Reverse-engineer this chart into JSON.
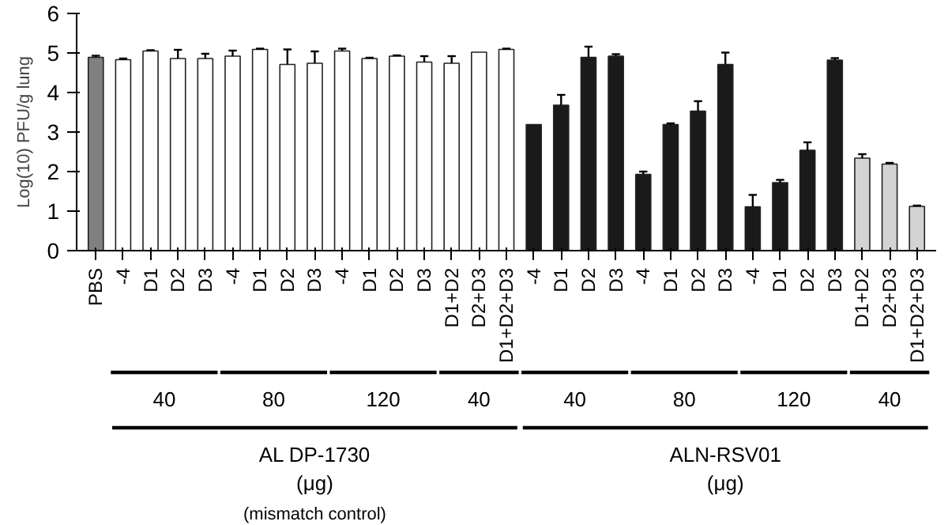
{
  "chart_data": {
    "type": "bar",
    "ylabel": "Log(10) PFU/g lung",
    "categories": [
      "PBS",
      "-4",
      "D1",
      "D2",
      "D3",
      "-4",
      "D1",
      "D2",
      "D3",
      "-4",
      "D1",
      "D2",
      "D3",
      "D1+D2",
      "D2+D3",
      "D1+D2+D3",
      "-4",
      "D1",
      "D2",
      "D3",
      "-4",
      "D1",
      "D2",
      "D3",
      "-4",
      "D1",
      "D2",
      "D3",
      "D1+D2",
      "D2+D3",
      "D1+D2+D3"
    ],
    "values": [
      4.89,
      4.83,
      5.05,
      4.86,
      4.86,
      4.92,
      5.09,
      4.71,
      4.74,
      5.05,
      4.86,
      4.92,
      4.77,
      4.74,
      5.02,
      5.09,
      3.19,
      3.68,
      4.89,
      4.92,
      1.93,
      3.19,
      3.53,
      4.71,
      1.11,
      1.72,
      2.54,
      4.82,
      2.34,
      2.19,
      1.12
    ],
    "colors": [
      "#808080",
      "#ffffff",
      "#ffffff",
      "#ffffff",
      "#ffffff",
      "#ffffff",
      "#ffffff",
      "#ffffff",
      "#ffffff",
      "#ffffff",
      "#ffffff",
      "#ffffff",
      "#ffffff",
      "#ffffff",
      "#ffffff",
      "#ffffff",
      "#1a1a1a",
      "#1a1a1a",
      "#1a1a1a",
      "#1a1a1a",
      "#1a1a1a",
      "#1a1a1a",
      "#1a1a1a",
      "#1a1a1a",
      "#1a1a1a",
      "#1a1a1a",
      "#1a1a1a",
      "#1a1a1a",
      "#d3d3d3",
      "#d3d3d3",
      "#d3d3d3"
    ],
    "errors": [
      [
        4.89,
        4.93
      ],
      [
        4.83,
        4.86
      ],
      [
        5.05,
        5.07
      ],
      [
        4.86,
        5.08
      ],
      [
        4.86,
        4.98
      ],
      [
        4.92,
        5.06
      ],
      [
        5.09,
        5.11
      ],
      [
        4.71,
        5.09
      ],
      [
        4.74,
        5.04
      ],
      [
        5.05,
        5.11
      ],
      [
        4.86,
        4.88
      ],
      [
        4.92,
        4.94
      ],
      [
        4.77,
        4.92
      ],
      [
        4.74,
        4.92
      ],
      null,
      [
        5.09,
        5.11
      ],
      null,
      [
        3.68,
        3.94
      ],
      [
        4.89,
        5.16
      ],
      [
        4.92,
        4.97
      ],
      [
        1.93,
        2.0
      ],
      [
        3.19,
        3.22
      ],
      [
        3.53,
        3.78
      ],
      [
        4.71,
        5.01
      ],
      [
        1.11,
        1.41
      ],
      [
        1.72,
        1.79
      ],
      [
        2.54,
        2.74
      ],
      [
        4.82,
        4.87
      ],
      [
        2.34,
        2.44
      ],
      [
        2.19,
        2.22
      ],
      [
        1.12,
        1.14
      ]
    ],
    "ylim": [
      0,
      6
    ],
    "yticks": [
      0,
      1,
      2,
      3,
      4,
      5,
      6
    ],
    "annotations": [
      "40",
      "80",
      "120",
      "40",
      "40",
      "80",
      "120",
      "40",
      "AL DP-1730",
      "(μg)",
      "(mismatch control)",
      "ALN-RSV01",
      "(μg)"
    ]
  }
}
